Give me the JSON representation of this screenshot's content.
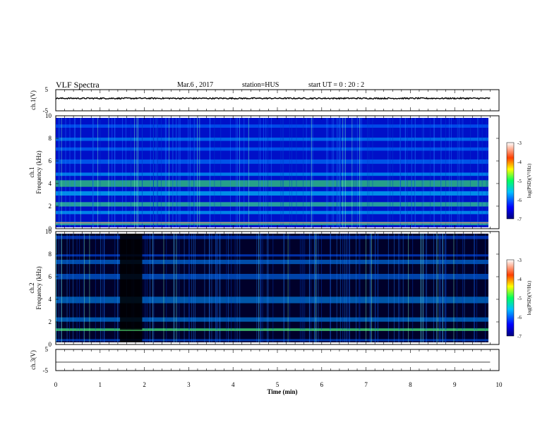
{
  "header": {
    "title": "VLF Spectra",
    "date": "Mar.6  , 2017",
    "station": "station=HUS",
    "start_time": "start  UT =   0 : 20 : 2"
  },
  "chart_data": [
    {
      "type": "line",
      "panel": "ch1-waveform",
      "ylabel": "ch.1(V)",
      "ylim": [
        -5,
        5
      ],
      "ytick_labels": [
        "5",
        "-5"
      ],
      "series": [
        {
          "values_description_only": "",
          "approx_level": 0.9
        }
      ]
    },
    {
      "type": "heatmap",
      "panel": "ch1-spectrogram",
      "ylabel": "ch.1\nFrequency (kHz)",
      "ylabel_line1": "ch.1",
      "ylabel_line2": "Frequency (kHz)",
      "ylim": [
        0,
        10
      ],
      "ytick_labels": [
        "0",
        "2",
        "4",
        "6",
        "8",
        "10"
      ],
      "colorbar": {
        "label": "log(PSD)(V²/Hz)",
        "range": [
          -7,
          -3
        ],
        "tick_labels": [
          "-3",
          "-4",
          "-5",
          "-6",
          "-7"
        ]
      }
    },
    {
      "type": "heatmap",
      "panel": "ch2-spectrogram",
      "ylabel_line1": "ch.2",
      "ylabel_line2": "Frequency (kHz)",
      "ylim": [
        0,
        10
      ],
      "ytick_labels": [
        "0",
        "2",
        "4",
        "6",
        "8",
        "10"
      ],
      "colorbar": {
        "label": "log(PSD)(V²/Hz)",
        "range": [
          -7,
          -3
        ],
        "tick_labels": [
          "-3",
          "-4",
          "-5",
          "-6",
          "-7"
        ]
      }
    },
    {
      "type": "line",
      "panel": "ch3-waveform",
      "ylabel": "ch.3(V)",
      "ylim": [
        -5,
        5
      ],
      "ytick_labels": [
        "5",
        "-5"
      ],
      "series": [
        {
          "approx_level": -1.0
        }
      ]
    }
  ],
  "xaxis": {
    "label": "Time  (min)",
    "xlim": [
      0,
      10
    ],
    "tick_labels": [
      "0",
      "1",
      "2",
      "3",
      "4",
      "5",
      "6",
      "7",
      "8",
      "9",
      "10"
    ]
  }
}
